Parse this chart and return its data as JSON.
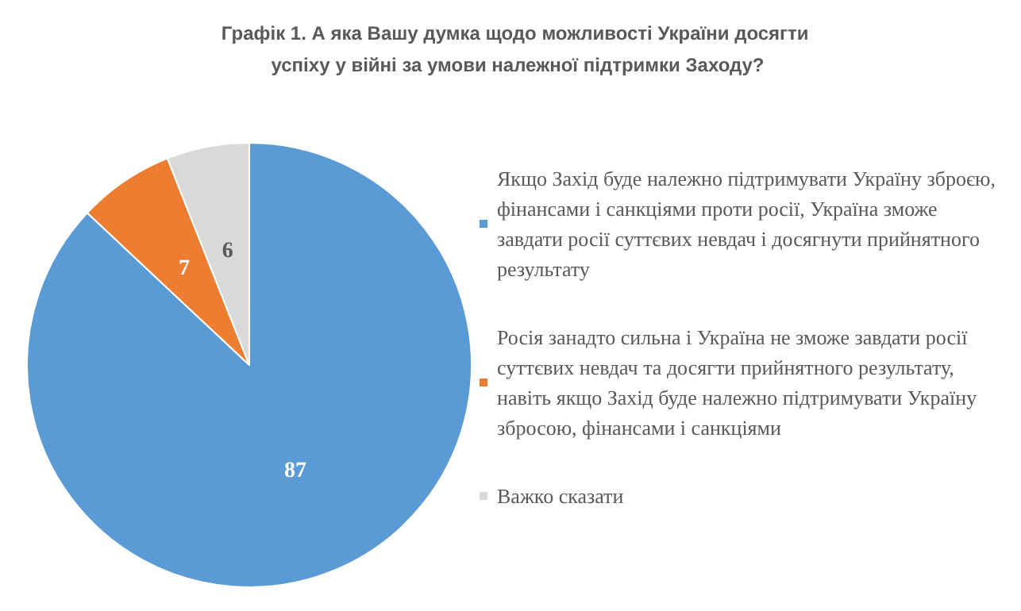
{
  "chart_data": {
    "type": "pie",
    "title": "Графік 1. А яка Вашу думка щодо можливості України досягти успіху у війні за умови належної підтримки Заходу?",
    "categories": [
      "Якщо Захід буде належно підтримувати Україну зброєю, фінансами і санкціями проти росії, Україна зможе завдати росії суттєвих невдач і досягнути прийнятного результату",
      "Росія занадто сильна і Україна не зможе завдати росії суттєвих невдач та досягти прийнятного результату, навіть якщо Захід буде належно підтримувати Україну збросою, фінансами і санкціями",
      "Важко сказати"
    ],
    "values": [
      87,
      7,
      6
    ],
    "colors": [
      "#5b9bd5",
      "#ed7d31",
      "#d9d9d9"
    ],
    "data_labels": true,
    "legend": "right"
  }
}
